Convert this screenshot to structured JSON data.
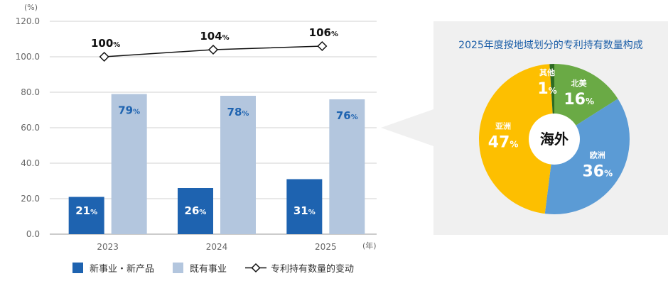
{
  "chart_data": [
    {
      "type": "bar",
      "y_unit": "(%)",
      "x_unit": "(年)",
      "categories": [
        "2023",
        "2024",
        "2025"
      ],
      "ylim": [
        0,
        120
      ],
      "yticks": [
        "0.0",
        "20.0",
        "40.0",
        "60.0",
        "80.0",
        "100.0",
        "120.0"
      ],
      "grid": true,
      "legend_position": "bottom",
      "series": [
        {
          "name": "新事业・新产品",
          "type": "bar",
          "values": [
            21,
            26,
            31
          ],
          "labels": [
            "21",
            "26",
            "31"
          ],
          "color": "#1e63b0"
        },
        {
          "name": "既有事业",
          "type": "bar",
          "values": [
            79,
            78,
            76
          ],
          "labels": [
            "79",
            "78",
            "76"
          ],
          "color": "#b3c6de"
        },
        {
          "name": "专利持有数量的变动",
          "type": "line",
          "values": [
            100,
            104,
            106
          ],
          "labels": [
            "100",
            "104",
            "106"
          ],
          "color": "#111111"
        }
      ],
      "percent_sign": "%"
    },
    {
      "type": "pie",
      "title": "2025年度按地域划分的专利持有数量构成",
      "center_label": "海外",
      "slices": [
        {
          "name": "北美",
          "value": 16,
          "color": "#6aaa45"
        },
        {
          "name": "欧洲",
          "value": 36,
          "color": "#5b9bd5"
        },
        {
          "name": "亚洲",
          "value": 47,
          "color": "#fdbf00"
        },
        {
          "name": "其他",
          "value": 1,
          "color": "#2e6b22"
        }
      ],
      "percent_sign": "%"
    }
  ],
  "colors": {
    "panel_bg": "#f0f0f0",
    "title_blue": "#1d5fa8",
    "grid": "#d0d0d0"
  }
}
